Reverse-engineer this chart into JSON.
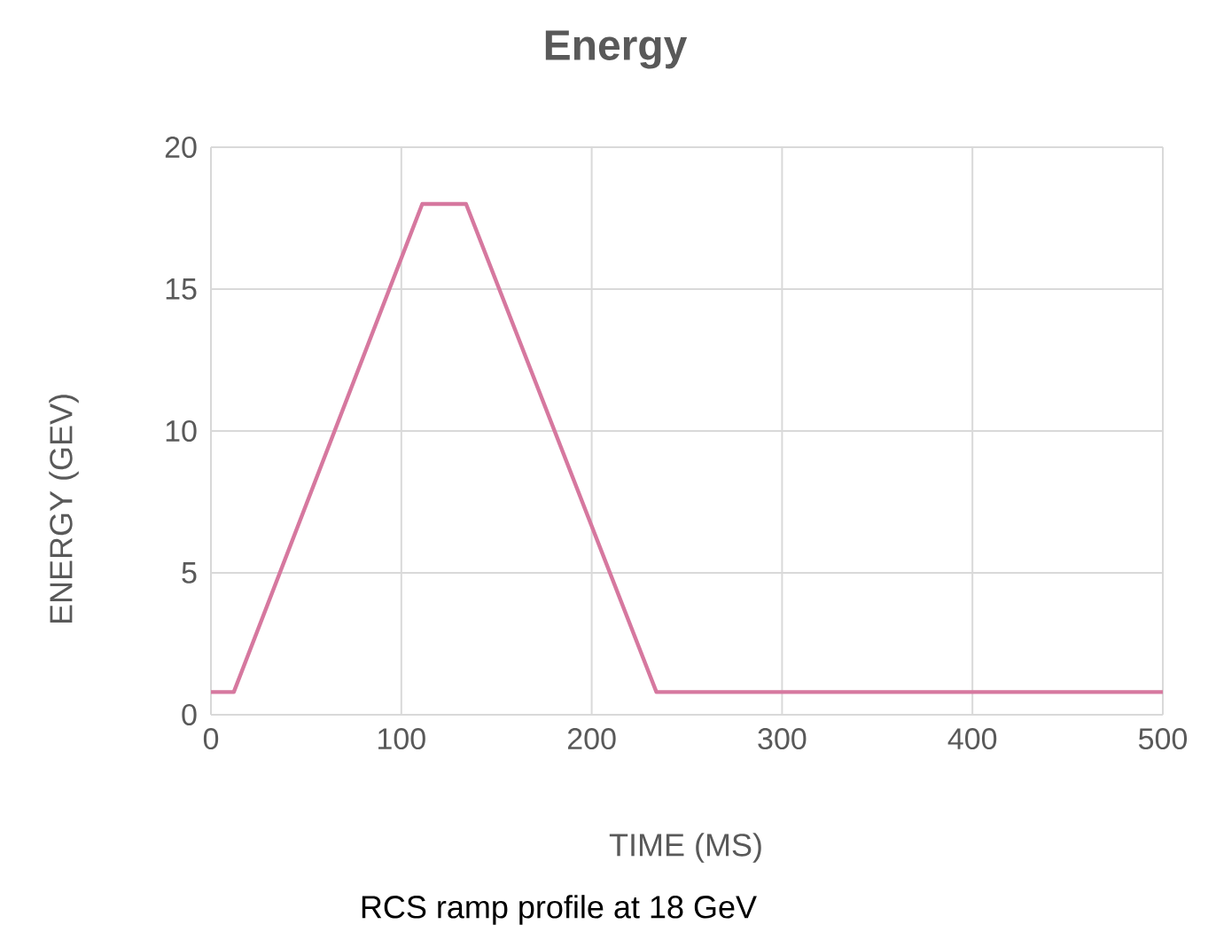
{
  "chart_data": {
    "type": "line",
    "title": "Energy",
    "xlabel": "TIME (MS)",
    "ylabel": "ENERGY (GEV)",
    "annotations": [
      "RCS ramp profile  at 18 GeV"
    ],
    "x": [
      0,
      12,
      111,
      134,
      234,
      500
    ],
    "series": [
      {
        "color": "#d6789f",
        "values": [
          0.8,
          0.8,
          18,
          18,
          0.8,
          0.8
        ]
      }
    ],
    "xlim": [
      0,
      500
    ],
    "ylim": [
      0,
      20
    ],
    "xticks": [
      0,
      100,
      200,
      300,
      400,
      500
    ],
    "yticks": [
      0,
      5,
      10,
      15,
      20
    ],
    "grid": true,
    "marker": "none",
    "line_style": "solid"
  }
}
